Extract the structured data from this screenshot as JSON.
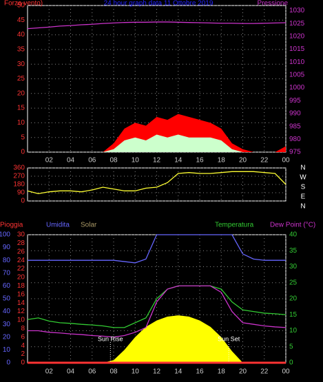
{
  "chart_data": [
    {
      "type": "area",
      "title": "24 hour graph data 11 Ottobre 2019",
      "y_label": "Forza vento)",
      "y2_label": "Pressione",
      "x": [
        0,
        1,
        2,
        3,
        4,
        5,
        6,
        7,
        8,
        9,
        10,
        11,
        12,
        13,
        14,
        15,
        16,
        17,
        18,
        19,
        20,
        21,
        22,
        23,
        24
      ],
      "xlim": [
        0,
        24
      ],
      "xticks": [
        {
          "value": 2,
          "label": "02"
        },
        {
          "value": 4,
          "label": "04"
        },
        {
          "value": 6,
          "label": "06"
        },
        {
          "value": 8,
          "label": "08"
        },
        10,
        12,
        14,
        16,
        18,
        20,
        22,
        {
          "value": 24,
          "label": "00"
        }
      ],
      "ylim": [
        0,
        50
      ],
      "yticks": [
        0,
        5,
        10,
        15,
        20,
        25,
        30,
        35,
        40,
        45,
        50
      ],
      "y2lim": [
        975,
        1032
      ],
      "y2ticks": [
        975,
        980,
        985,
        990,
        995,
        1000,
        1005,
        1010,
        1015,
        1020,
        1025,
        1030
      ],
      "grid": true,
      "series": [
        {
          "color": "#ff0000",
          "fill": true,
          "values": [
            0,
            0,
            0,
            0,
            0,
            0,
            0,
            0,
            3,
            8,
            10,
            9,
            12,
            11,
            13,
            12,
            11,
            10,
            8,
            3,
            1,
            0,
            0,
            0,
            2
          ]
        },
        {
          "color": "#ccffcc",
          "fill": true,
          "values": [
            0,
            0,
            0,
            0,
            0,
            0,
            0,
            0,
            1,
            4,
            5,
            4,
            6,
            5,
            6,
            5,
            5,
            5,
            4,
            1,
            0,
            0,
            0,
            0,
            0
          ]
        },
        {
          "color": "#cc33cc",
          "axis": "y2",
          "values": [
            1023,
            1023.3,
            1023.6,
            1024,
            1024.2,
            1024.5,
            1024.7,
            1025,
            1025.2,
            1025.4,
            1025.5,
            1025.5,
            1025.6,
            1025.6,
            1025.5,
            1025.4,
            1025.3,
            1025.2,
            1025.1,
            1025.1,
            1025,
            1025,
            1025.1,
            1025.2,
            1025.3
          ]
        }
      ]
    },
    {
      "type": "line",
      "x": [
        0,
        1,
        2,
        3,
        4,
        5,
        6,
        7,
        8,
        9,
        10,
        11,
        12,
        13,
        14,
        15,
        16,
        17,
        18,
        19,
        20,
        21,
        22,
        23,
        24
      ],
      "xlim": [
        0,
        24
      ],
      "xticks": [
        2,
        4,
        6,
        8,
        10,
        12,
        14,
        16,
        18,
        20,
        22,
        24
      ],
      "ylim": [
        0,
        360
      ],
      "yticks": [
        0,
        90,
        180,
        270,
        360
      ],
      "y2lim": [
        0,
        360
      ],
      "y2ticks": [
        {
          "value": 360,
          "label": "N"
        },
        {
          "value": 270,
          "label": "W"
        },
        {
          "value": 180,
          "label": "S"
        },
        {
          "value": 90,
          "label": "E"
        },
        {
          "value": 0,
          "label": "N"
        }
      ],
      "grid": true,
      "series": [
        {
          "color": "#ffff33",
          "values": [
            110,
            80,
            100,
            110,
            110,
            100,
            120,
            150,
            130,
            110,
            110,
            140,
            150,
            200,
            300,
            310,
            300,
            300,
            310,
            320,
            320,
            320,
            310,
            300,
            180
          ]
        }
      ]
    },
    {
      "type": "line",
      "y_label": "Pioggia",
      "humidity_label": "Umidita",
      "solar_label": "Solar",
      "y2_label": "Temperatura",
      "y3_label": "Dew Point (°C)",
      "x": [
        0,
        1,
        2,
        3,
        4,
        5,
        6,
        7,
        8,
        9,
        10,
        11,
        12,
        13,
        14,
        15,
        16,
        17,
        18,
        19,
        20,
        21,
        22,
        23,
        24
      ],
      "xlim": [
        0,
        24
      ],
      "xticks": [
        {
          "value": 2,
          "label": "02"
        },
        {
          "value": 4,
          "label": "04"
        },
        {
          "value": 6,
          "label": "06"
        },
        {
          "value": 8,
          "label": "08"
        },
        10,
        12,
        14,
        16,
        18,
        20,
        22,
        {
          "value": 24,
          "label": "00"
        }
      ],
      "ylim": [
        0,
        30
      ],
      "yticks": [
        0,
        2,
        4,
        6,
        8,
        10,
        12,
        14,
        16,
        18,
        20,
        22,
        24,
        26,
        28,
        30
      ],
      "humidity_lim": [
        0,
        100
      ],
      "humidity_ticks": [
        0,
        10,
        20,
        30,
        40,
        50,
        60,
        70,
        80,
        90,
        100
      ],
      "y2lim": [
        0,
        40
      ],
      "y2ticks": [
        0,
        5,
        10,
        15,
        20,
        25,
        30,
        35,
        40
      ],
      "grid": true,
      "annotations": [
        {
          "text": "Sun Rise",
          "x": 7.7
        },
        {
          "text": "Sun Set",
          "x": 18.7
        }
      ],
      "series": [
        {
          "color": "#ffff00",
          "fill": true,
          "axis": "humidity",
          "values": [
            0,
            0,
            0,
            0,
            0,
            0,
            0,
            0,
            2,
            10,
            20,
            28,
            33,
            36,
            37,
            36,
            33,
            28,
            20,
            9,
            0,
            0,
            0,
            0,
            0
          ]
        },
        {
          "color": "#6666ff",
          "axis": "humidity",
          "values": [
            80,
            80,
            80,
            80,
            80,
            80,
            80,
            80,
            80,
            79,
            78,
            81,
            100,
            100,
            100,
            100,
            100,
            100,
            100,
            100,
            85,
            81,
            80,
            80,
            80
          ]
        },
        {
          "color": "#ff3333",
          "values": [
            0,
            0,
            0,
            0,
            0,
            0,
            0,
            0,
            0,
            0,
            0,
            0,
            0,
            0,
            0,
            0,
            0,
            0,
            0,
            0,
            0,
            0,
            0,
            0,
            0
          ]
        },
        {
          "color": "#33cc33",
          "axis": "y2",
          "values": [
            13.5,
            14,
            13,
            12.5,
            12.3,
            12,
            11.8,
            11.5,
            11,
            11,
            12.5,
            14,
            20,
            23,
            24,
            24,
            24,
            24,
            23,
            19,
            16.5,
            16,
            15.5,
            15.3,
            15
          ]
        },
        {
          "color": "#cc33cc",
          "axis": "y2",
          "values": [
            10,
            10,
            9.5,
            9.3,
            9,
            8.8,
            8.5,
            8.3,
            8,
            8.5,
            9.5,
            11,
            19,
            23,
            24,
            24,
            24,
            24,
            22,
            16,
            12.5,
            12,
            11.5,
            11.2,
            11
          ]
        }
      ]
    }
  ]
}
